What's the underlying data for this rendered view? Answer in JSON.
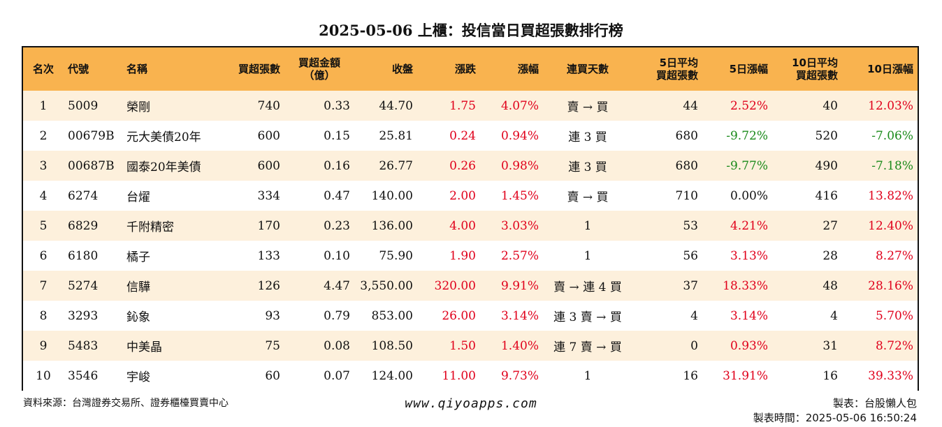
{
  "title": "2025-05-06 上櫃：投信當日買超張數排行榜",
  "columns": [
    {
      "key": "rank",
      "label": "名次"
    },
    {
      "key": "code",
      "label": "代號"
    },
    {
      "key": "name",
      "label": "名稱"
    },
    {
      "key": "net_buy_lots",
      "label": "買超張數"
    },
    {
      "key": "net_buy_amount",
      "label_line1": "買超金額",
      "label_line2": "（億）"
    },
    {
      "key": "close",
      "label": "收盤"
    },
    {
      "key": "change",
      "label": "漲跌"
    },
    {
      "key": "change_pct",
      "label": "漲幅"
    },
    {
      "key": "consecutive",
      "label": "連買天數"
    },
    {
      "key": "avg5",
      "label_line1": "5日平均",
      "label_line2": "買超張數"
    },
    {
      "key": "chg5",
      "label": "5日漲幅"
    },
    {
      "key": "avg10",
      "label_line1": "10日平均",
      "label_line2": "買超張數"
    },
    {
      "key": "chg10",
      "label": "10日漲幅"
    }
  ],
  "rows": [
    {
      "rank": "1",
      "code": "5009",
      "name": "榮剛",
      "net_buy_lots": "740",
      "net_buy_amount": "0.33",
      "close": "44.70",
      "change": "1.75",
      "change_pct": "4.07%",
      "consecutive": "賣 → 買",
      "avg5": "44",
      "chg5": "2.52%",
      "chg5_color": "red",
      "avg10": "40",
      "chg10": "12.03%",
      "chg10_color": "red"
    },
    {
      "rank": "2",
      "code": "00679B",
      "name": "元大美債20年",
      "net_buy_lots": "600",
      "net_buy_amount": "0.15",
      "close": "25.81",
      "change": "0.24",
      "change_pct": "0.94%",
      "consecutive": "連 3 買",
      "avg5": "680",
      "chg5": "-9.72%",
      "chg5_color": "green",
      "avg10": "520",
      "chg10": "-7.06%",
      "chg10_color": "green"
    },
    {
      "rank": "3",
      "code": "00687B",
      "name": "國泰20年美債",
      "net_buy_lots": "600",
      "net_buy_amount": "0.16",
      "close": "26.77",
      "change": "0.26",
      "change_pct": "0.98%",
      "consecutive": "連 3 買",
      "avg5": "680",
      "chg5": "-9.77%",
      "chg5_color": "green",
      "avg10": "490",
      "chg10": "-7.18%",
      "chg10_color": "green"
    },
    {
      "rank": "4",
      "code": "6274",
      "name": "台燿",
      "net_buy_lots": "334",
      "net_buy_amount": "0.47",
      "close": "140.00",
      "change": "2.00",
      "change_pct": "1.45%",
      "consecutive": "賣 → 買",
      "avg5": "710",
      "chg5": "0.00%",
      "chg5_color": "black",
      "avg10": "416",
      "chg10": "13.82%",
      "chg10_color": "red"
    },
    {
      "rank": "5",
      "code": "6829",
      "name": "千附精密",
      "net_buy_lots": "170",
      "net_buy_amount": "0.23",
      "close": "136.00",
      "change": "4.00",
      "change_pct": "3.03%",
      "consecutive": "1",
      "avg5": "53",
      "chg5": "4.21%",
      "chg5_color": "red",
      "avg10": "27",
      "chg10": "12.40%",
      "chg10_color": "red"
    },
    {
      "rank": "6",
      "code": "6180",
      "name": "橘子",
      "net_buy_lots": "133",
      "net_buy_amount": "0.10",
      "close": "75.90",
      "change": "1.90",
      "change_pct": "2.57%",
      "consecutive": "1",
      "avg5": "56",
      "chg5": "3.13%",
      "chg5_color": "red",
      "avg10": "28",
      "chg10": "8.27%",
      "chg10_color": "red"
    },
    {
      "rank": "7",
      "code": "5274",
      "name": "信驊",
      "net_buy_lots": "126",
      "net_buy_amount": "4.47",
      "close": "3,550.00",
      "change": "320.00",
      "change_pct": "9.91%",
      "consecutive": "賣 → 連 4 買",
      "avg5": "37",
      "chg5": "18.33%",
      "chg5_color": "red",
      "avg10": "48",
      "chg10": "28.16%",
      "chg10_color": "red"
    },
    {
      "rank": "8",
      "code": "3293",
      "name": "鈊象",
      "net_buy_lots": "93",
      "net_buy_amount": "0.79",
      "close": "853.00",
      "change": "26.00",
      "change_pct": "3.14%",
      "consecutive": "連 3 賣 → 買",
      "avg5": "4",
      "chg5": "3.14%",
      "chg5_color": "red",
      "avg10": "4",
      "chg10": "5.70%",
      "chg10_color": "red"
    },
    {
      "rank": "9",
      "code": "5483",
      "name": "中美晶",
      "net_buy_lots": "75",
      "net_buy_amount": "0.08",
      "close": "108.50",
      "change": "1.50",
      "change_pct": "1.40%",
      "consecutive": "連 7 賣 → 買",
      "avg5": "0",
      "chg5": "0.93%",
      "chg5_color": "red",
      "avg10": "31",
      "chg10": "8.72%",
      "chg10_color": "red"
    },
    {
      "rank": "10",
      "code": "3546",
      "name": "宇峻",
      "net_buy_lots": "60",
      "net_buy_amount": "0.07",
      "close": "124.00",
      "change": "11.00",
      "change_pct": "9.73%",
      "consecutive": "1",
      "avg5": "16",
      "chg5": "31.91%",
      "chg5_color": "red",
      "avg10": "16",
      "chg10": "39.33%",
      "chg10_color": "red"
    }
  ],
  "footer": {
    "source": "資料來源：台灣證券交易所、證券櫃檯買賣中心",
    "website": "www.qiyoapps.com",
    "author": "製表：台股懶人包",
    "timestamp": "製表時間：2025-05-06 16:50:24"
  },
  "colors": {
    "header_bg": "#f9b34f",
    "stripe_bg": "#fdf0dc",
    "up": "#e0001b",
    "down": "#1a8a1a"
  }
}
